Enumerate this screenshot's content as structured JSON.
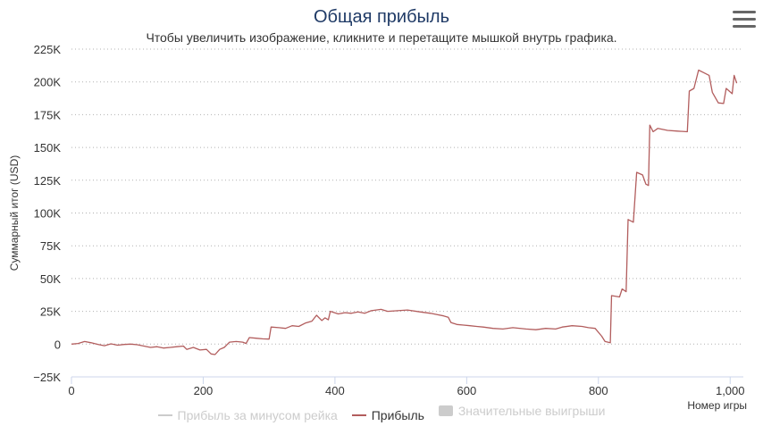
{
  "header": {
    "title": "Общая прибыль",
    "subtitle": "Чтобы увеличить изображение, кликните и перетащите мышкой внутрь графика."
  },
  "menu": {
    "icon": "hamburger-menu-icon"
  },
  "legend": {
    "items": [
      {
        "label": "Прибыль за минусом рейка",
        "state": "hidden",
        "color": "#cccccc",
        "kind": "line"
      },
      {
        "label": "Прибыль",
        "state": "active",
        "color": "#b25d5d",
        "kind": "line"
      },
      {
        "label": "Значительные выигрыши",
        "state": "hidden",
        "color": "#cccccc",
        "kind": "box"
      }
    ]
  },
  "chart_data": {
    "type": "line",
    "xlabel": "Номер игры",
    "ylabel": "Суммарный итог (USD)",
    "xlim": [
      0,
      1020
    ],
    "ylim": [
      -25000,
      225000
    ],
    "x_ticks": [
      0,
      200,
      400,
      600,
      800,
      1000
    ],
    "x_tick_labels": [
      "0",
      "200",
      "400",
      "600",
      "800",
      "1,000"
    ],
    "y_ticks": [
      -25000,
      0,
      25000,
      50000,
      75000,
      100000,
      125000,
      150000,
      175000,
      200000,
      225000
    ],
    "y_tick_labels": [
      "−25K",
      "0",
      "25K",
      "50K",
      "75K",
      "100K",
      "125K",
      "150K",
      "175K",
      "200K",
      "225K"
    ],
    "grid": "horizontal-dotted",
    "series": [
      {
        "name": "Прибыль",
        "color": "#b25d5d",
        "points": [
          [
            0,
            0
          ],
          [
            10,
            500
          ],
          [
            20,
            2000
          ],
          [
            30,
            1000
          ],
          [
            40,
            -200
          ],
          [
            50,
            -1200
          ],
          [
            60,
            200
          ],
          [
            70,
            -800
          ],
          [
            80,
            -300
          ],
          [
            90,
            0
          ],
          [
            100,
            -500
          ],
          [
            110,
            -1500
          ],
          [
            120,
            -2500
          ],
          [
            130,
            -2000
          ],
          [
            140,
            -3000
          ],
          [
            150,
            -2500
          ],
          [
            160,
            -2000
          ],
          [
            170,
            -1500
          ],
          [
            175,
            -4000
          ],
          [
            185,
            -2500
          ],
          [
            195,
            -4500
          ],
          [
            205,
            -4000
          ],
          [
            212,
            -7500
          ],
          [
            218,
            -8000
          ],
          [
            225,
            -4000
          ],
          [
            232,
            -2500
          ],
          [
            240,
            1500
          ],
          [
            250,
            2000
          ],
          [
            260,
            1500
          ],
          [
            265,
            500
          ],
          [
            270,
            5000
          ],
          [
            280,
            4500
          ],
          [
            290,
            4000
          ],
          [
            300,
            3800
          ],
          [
            303,
            13000
          ],
          [
            315,
            12500
          ],
          [
            325,
            12000
          ],
          [
            335,
            14000
          ],
          [
            345,
            13500
          ],
          [
            355,
            16000
          ],
          [
            365,
            17500
          ],
          [
            372,
            22000
          ],
          [
            380,
            18000
          ],
          [
            385,
            20000
          ],
          [
            390,
            18500
          ],
          [
            393,
            25000
          ],
          [
            405,
            23000
          ],
          [
            415,
            24000
          ],
          [
            425,
            23500
          ],
          [
            435,
            24500
          ],
          [
            445,
            23500
          ],
          [
            455,
            25500
          ],
          [
            470,
            26500
          ],
          [
            480,
            25000
          ],
          [
            495,
            25500
          ],
          [
            510,
            26000
          ],
          [
            530,
            24500
          ],
          [
            545,
            23500
          ],
          [
            555,
            22500
          ],
          [
            565,
            21500
          ],
          [
            572,
            20500
          ],
          [
            576,
            16500
          ],
          [
            585,
            15000
          ],
          [
            595,
            14500
          ],
          [
            605,
            14000
          ],
          [
            615,
            13500
          ],
          [
            625,
            13000
          ],
          [
            640,
            12000
          ],
          [
            655,
            11500
          ],
          [
            670,
            12500
          ],
          [
            690,
            11500
          ],
          [
            705,
            11000
          ],
          [
            720,
            12000
          ],
          [
            735,
            11500
          ],
          [
            745,
            13000
          ],
          [
            760,
            14000
          ],
          [
            775,
            13500
          ],
          [
            785,
            12500
          ],
          [
            795,
            12000
          ],
          [
            805,
            6000
          ],
          [
            810,
            2000
          ],
          [
            818,
            1000
          ],
          [
            820,
            37000
          ],
          [
            832,
            36000
          ],
          [
            836,
            42000
          ],
          [
            842,
            40000
          ],
          [
            845,
            95000
          ],
          [
            853,
            93000
          ],
          [
            858,
            131000
          ],
          [
            867,
            129000
          ],
          [
            872,
            122000
          ],
          [
            876,
            121000
          ],
          [
            878,
            167000
          ],
          [
            883,
            162000
          ],
          [
            890,
            164500
          ],
          [
            905,
            163000
          ],
          [
            920,
            162500
          ],
          [
            935,
            162000
          ],
          [
            938,
            193000
          ],
          [
            945,
            195000
          ],
          [
            952,
            209000
          ],
          [
            960,
            207000
          ],
          [
            968,
            205000
          ],
          [
            973,
            192000
          ],
          [
            982,
            184000
          ],
          [
            990,
            183500
          ],
          [
            994,
            195000
          ],
          [
            1003,
            191000
          ],
          [
            1006,
            205000
          ],
          [
            1010,
            199000
          ]
        ]
      }
    ]
  }
}
